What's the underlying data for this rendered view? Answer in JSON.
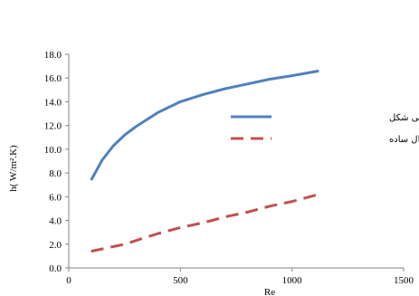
{
  "chart_data": {
    "type": "line",
    "xlabel": "Re",
    "ylabel": "h( W/m².K)",
    "xlim": [
      0,
      1500
    ],
    "ylim": [
      0,
      18
    ],
    "x_ticks": [
      "0",
      "500",
      "1000",
      "1500"
    ],
    "y_ticks": [
      "0.0",
      "2.0",
      "4.0",
      "6.0",
      "8.0",
      "10.0",
      "12.0",
      "14.0",
      "16.0",
      "18.0"
    ],
    "grid": false,
    "legend_position": "right",
    "series": [
      {
        "name": "میکروکانال مارپیچی شکل",
        "color": "#4f81bd",
        "style": "solid",
        "x": [
          100,
          150,
          200,
          250,
          300,
          400,
          500,
          600,
          700,
          800,
          900,
          1000,
          1120
        ],
        "y": [
          7.4,
          9.1,
          10.3,
          11.2,
          11.9,
          13.1,
          14.0,
          14.6,
          15.1,
          15.5,
          15.9,
          16.2,
          16.6
        ]
      },
      {
        "name": "میکروکانال ساده",
        "color": "#c0504d",
        "style": "dashed",
        "x": [
          100,
          200,
          250,
          300,
          400,
          500,
          600,
          700,
          800,
          900,
          1000,
          1120
        ],
        "y": [
          1.4,
          1.8,
          2.0,
          2.3,
          2.9,
          3.4,
          3.8,
          4.3,
          4.7,
          5.2,
          5.6,
          6.2
        ]
      }
    ]
  }
}
